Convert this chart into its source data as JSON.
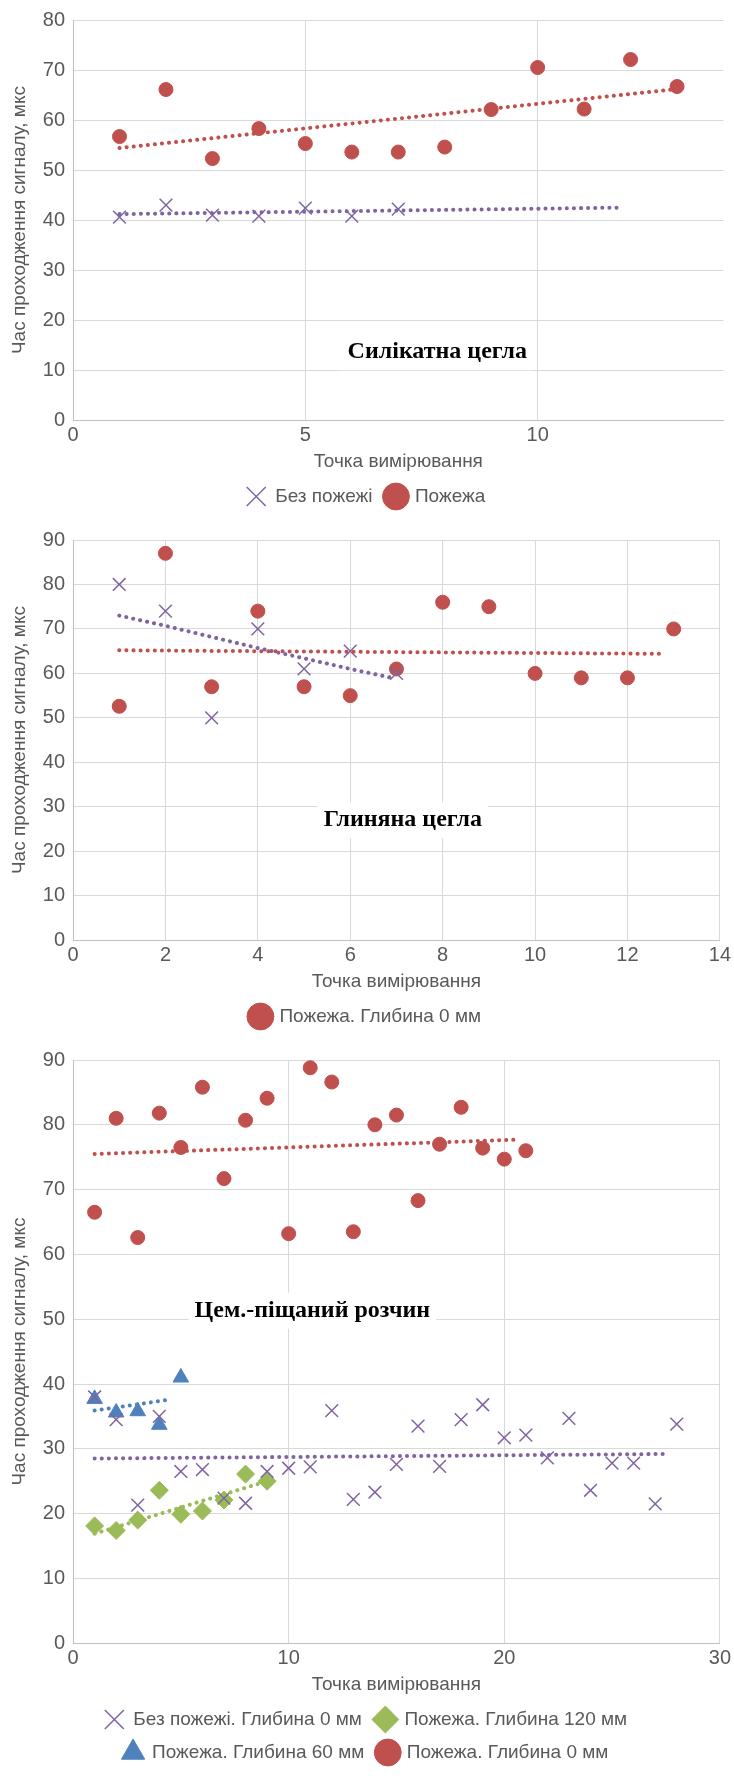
{
  "chart_data": [
    {
      "type": "scatter",
      "xlabel": "Точка вимірювання",
      "ylabel": "Час проходження сигналу, мкс",
      "xlim": [
        0,
        14
      ],
      "xticks": [
        0,
        5,
        10
      ],
      "ylim": [
        0,
        80
      ],
      "yticks": [
        0,
        10,
        20,
        30,
        40,
        50,
        60,
        70,
        80
      ],
      "grid": true,
      "legend": "bottom",
      "annotations": [
        "Силікатна цегла"
      ],
      "series": [
        {
          "name": "Пожежа",
          "color": "#c0504d",
          "marker": "circle",
          "x": [
            1,
            2,
            3,
            4,
            5,
            6,
            7,
            8,
            9,
            10,
            11,
            12,
            13
          ],
          "values": [
            56.7,
            66.1,
            52.3,
            58.3,
            55.3,
            53.6,
            53.6,
            54.6,
            62.1,
            70.5,
            62.2,
            72.1,
            66.7
          ]
        },
        {
          "name": "Без пожежі",
          "color": "#8064a2",
          "marker": "cross",
          "x": [
            1,
            2,
            3,
            4,
            5,
            6,
            7
          ],
          "values": [
            40.6,
            43.0,
            41.0,
            40.8,
            42.4,
            40.8,
            42.2
          ]
        },
        {
          "type": "line",
          "color": "#c0504d",
          "marker": "none",
          "line_style": "dotted",
          "x": [
            1,
            13
          ],
          "values": [
            54.4,
            66.2
          ]
        },
        {
          "type": "line",
          "color": "#8064a2",
          "marker": "none",
          "line_style": "dotted",
          "x": [
            1,
            11.8
          ],
          "values": [
            41.2,
            42.5
          ]
        }
      ]
    },
    {
      "type": "scatter",
      "xlabel": "Точка вимірювання",
      "ylabel": "Час проходження сигналу, мкс",
      "xlim": [
        0,
        14
      ],
      "xticks": [
        0,
        2,
        4,
        6,
        8,
        10,
        12,
        14
      ],
      "ylim": [
        0,
        90
      ],
      "yticks": [
        0,
        10,
        20,
        30,
        40,
        50,
        60,
        70,
        80,
        90
      ],
      "grid": true,
      "legend": "bottom",
      "annotations": [
        "Глиняна цегла"
      ],
      "series": [
        {
          "name": "Пожежа. Глибина 0 мм",
          "color": "#c0504d",
          "marker": "circle",
          "x": [
            1,
            2,
            3,
            4,
            5,
            6,
            7,
            8,
            9,
            10,
            11,
            12,
            13
          ],
          "values": [
            52.6,
            87,
            57,
            74,
            57,
            55,
            61,
            76,
            75,
            60,
            59,
            59,
            70
          ]
        },
        {
          "color": "#8064a2",
          "marker": "cross",
          "x": [
            1,
            2,
            3,
            4,
            5,
            6,
            7
          ],
          "values": [
            80,
            74,
            50,
            70,
            61,
            65,
            60
          ]
        },
        {
          "type": "line",
          "color": "#c0504d",
          "marker": "none",
          "line_style": "dotted",
          "x": [
            1,
            12.8
          ],
          "values": [
            65.2,
            64.4
          ]
        },
        {
          "type": "line",
          "color": "#8064a2",
          "marker": "none",
          "line_style": "dotted",
          "x": [
            1,
            2,
            3,
            4,
            5,
            6,
            6.9
          ],
          "values": [
            73,
            70.7,
            68.2,
            65.7,
            63.4,
            61,
            59
          ]
        }
      ]
    },
    {
      "type": "scatter",
      "xlabel": "Точка вимірювання",
      "ylabel": "Час проходження сигналу, мкс",
      "xlim": [
        0,
        30
      ],
      "xticks": [
        0,
        10,
        20,
        30
      ],
      "ylim": [
        0,
        90
      ],
      "yticks": [
        0,
        10,
        20,
        30,
        40,
        50,
        60,
        70,
        80,
        90
      ],
      "grid": true,
      "legend": "bottom",
      "annotations": [
        "Цем.-піщаний розчин"
      ],
      "series": [
        {
          "name": "Пожежа. Глибина 120 мм",
          "color": "#9bbb59",
          "marker": "diamond",
          "x": [
            1,
            2,
            3,
            4,
            5,
            6,
            7,
            8,
            9
          ],
          "values": [
            18.1,
            17.4,
            19,
            23.6,
            19.9,
            20.4,
            22.1,
            26.1,
            25
          ]
        },
        {
          "name": "Пожежа. Глибина 60 мм",
          "color": "#4f81bd",
          "marker": "triangle",
          "x": [
            1,
            2,
            3,
            4,
            5
          ],
          "values": [
            37.7,
            35.6,
            35.8,
            33.7,
            41
          ]
        },
        {
          "name": "Пожежа. Глибина 0 мм",
          "color": "#c0504d",
          "marker": "circle",
          "x": [
            1,
            2,
            3,
            4,
            5,
            6,
            7,
            8,
            9,
            10,
            11,
            12,
            13,
            14,
            15,
            16,
            17,
            18,
            19,
            20,
            21
          ],
          "values": [
            66.5,
            81,
            62.6,
            81.8,
            76.5,
            85.8,
            71.7,
            80.7,
            84.1,
            63.2,
            88.8,
            86.6,
            63.5,
            80,
            81.5,
            68.3,
            77,
            82.7,
            76.4,
            74.7,
            76
          ]
        },
        {
          "name": "Без пожежі. Глибина 0 мм",
          "color": "#8064a2",
          "marker": "cross",
          "x": [
            1,
            2,
            3,
            4,
            5,
            6,
            7,
            8,
            9,
            10,
            11,
            12,
            13,
            14,
            15,
            16,
            17,
            18,
            19,
            20,
            21,
            22,
            23,
            24,
            25,
            26,
            27,
            28
          ],
          "values": [
            38,
            34.5,
            21.3,
            35,
            26.5,
            26.8,
            22.4,
            21.6,
            26.5,
            27,
            27.2,
            35.9,
            22.2,
            23.3,
            27.6,
            33.5,
            27.3,
            34.5,
            36.8,
            31.7,
            32.1,
            28.6,
            34.7,
            23.6,
            27.8,
            27.8,
            21.5,
            33.8
          ]
        },
        {
          "type": "line",
          "color": "#9bbb59",
          "marker": "none",
          "line_style": "dotted",
          "x": [
            1,
            9
          ],
          "values": [
            16.9,
            25
          ]
        },
        {
          "type": "line",
          "color": "#4f81bd",
          "marker": "none",
          "line_style": "dotted",
          "x": [
            1,
            4.5
          ],
          "values": [
            35.9,
            37.6
          ]
        },
        {
          "type": "line",
          "color": "#c0504d",
          "marker": "none",
          "line_style": "dotted",
          "x": [
            1,
            20.5
          ],
          "values": [
            75.5,
            77.7
          ]
        },
        {
          "type": "line",
          "color": "#8064a2",
          "marker": "none",
          "line_style": "dotted",
          "x": [
            1,
            27.5
          ],
          "values": [
            28.5,
            29.2
          ]
        }
      ]
    }
  ]
}
